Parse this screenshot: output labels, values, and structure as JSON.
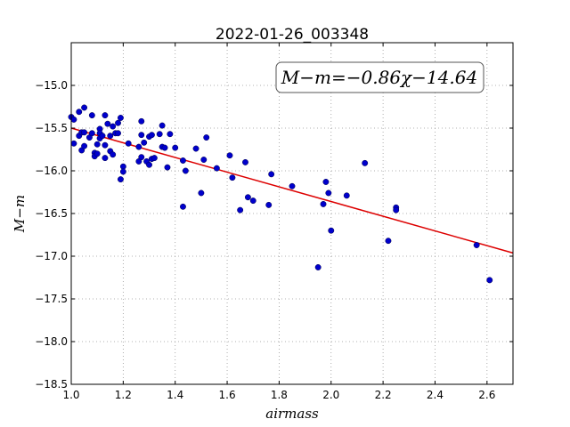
{
  "chart_data": {
    "type": "scatter",
    "title": "2022-01-26_003348",
    "xlabel": "airmass",
    "ylabel": "M−m",
    "annotation": "M−m=−0.86χ−14.64",
    "xlim": [
      1.0,
      2.7
    ],
    "ylim": [
      -18.5,
      -14.5
    ],
    "y_inverted": true,
    "grid": true,
    "x_ticks": [
      1.0,
      1.2,
      1.4,
      1.6,
      1.8,
      2.0,
      2.2,
      2.4,
      2.6
    ],
    "x_tick_labels": [
      "1.0",
      "1.2",
      "1.4",
      "1.6",
      "1.8",
      "2.0",
      "2.2",
      "2.4",
      "2.6"
    ],
    "y_ticks": [
      -15.0,
      -15.5,
      -16.0,
      -16.5,
      -17.0,
      -17.5,
      -18.0,
      -18.5
    ],
    "y_tick_labels": [
      "−15.0",
      "−15.5",
      "−16.0",
      "−16.5",
      "−17.0",
      "−17.5",
      "−18.0",
      "−18.5"
    ],
    "fit": {
      "slope": -0.86,
      "intercept": -14.64,
      "color": "#dd0000"
    },
    "points_color": "#0000cc",
    "points": [
      [
        1.0,
        -15.37
      ],
      [
        1.01,
        -15.68
      ],
      [
        1.01,
        -15.4
      ],
      [
        1.03,
        -15.31
      ],
      [
        1.03,
        -15.59
      ],
      [
        1.04,
        -15.55
      ],
      [
        1.04,
        -15.76
      ],
      [
        1.05,
        -15.26
      ],
      [
        1.05,
        -15.55
      ],
      [
        1.05,
        -15.71
      ],
      [
        1.07,
        -15.61
      ],
      [
        1.08,
        -15.35
      ],
      [
        1.08,
        -15.56
      ],
      [
        1.09,
        -15.79
      ],
      [
        1.09,
        -15.83
      ],
      [
        1.1,
        -15.8
      ],
      [
        1.1,
        -15.69
      ],
      [
        1.11,
        -15.51
      ],
      [
        1.11,
        -15.56
      ],
      [
        1.11,
        -15.62
      ],
      [
        1.12,
        -15.59
      ],
      [
        1.13,
        -15.7
      ],
      [
        1.13,
        -15.85
      ],
      [
        1.13,
        -15.35
      ],
      [
        1.14,
        -15.45
      ],
      [
        1.15,
        -15.59
      ],
      [
        1.15,
        -15.77
      ],
      [
        1.16,
        -15.81
      ],
      [
        1.16,
        -15.48
      ],
      [
        1.17,
        -15.56
      ],
      [
        1.18,
        -15.44
      ],
      [
        1.18,
        -15.56
      ],
      [
        1.19,
        -15.38
      ],
      [
        1.19,
        -16.1
      ],
      [
        1.2,
        -15.95
      ],
      [
        1.2,
        -16.01
      ],
      [
        1.22,
        -15.68
      ],
      [
        1.26,
        -15.72
      ],
      [
        1.26,
        -15.89
      ],
      [
        1.27,
        -15.42
      ],
      [
        1.27,
        -15.58
      ],
      [
        1.27,
        -15.84
      ],
      [
        1.28,
        -15.67
      ],
      [
        1.29,
        -15.89
      ],
      [
        1.3,
        -15.6
      ],
      [
        1.3,
        -15.93
      ],
      [
        1.31,
        -15.86
      ],
      [
        1.31,
        -15.58
      ],
      [
        1.32,
        -15.85
      ],
      [
        1.34,
        -15.57
      ],
      [
        1.35,
        -15.47
      ],
      [
        1.35,
        -15.72
      ],
      [
        1.36,
        -15.73
      ],
      [
        1.37,
        -15.96
      ],
      [
        1.38,
        -15.57
      ],
      [
        1.4,
        -15.73
      ],
      [
        1.43,
        -15.88
      ],
      [
        1.43,
        -16.42
      ],
      [
        1.44,
        -16.0
      ],
      [
        1.48,
        -15.74
      ],
      [
        1.5,
        -16.26
      ],
      [
        1.51,
        -15.87
      ],
      [
        1.52,
        -15.61
      ],
      [
        1.56,
        -15.97
      ],
      [
        1.61,
        -15.82
      ],
      [
        1.62,
        -16.08
      ],
      [
        1.65,
        -16.46
      ],
      [
        1.67,
        -15.9
      ],
      [
        1.68,
        -16.31
      ],
      [
        1.7,
        -16.35
      ],
      [
        1.76,
        -16.4
      ],
      [
        1.77,
        -16.04
      ],
      [
        1.85,
        -16.18
      ],
      [
        1.95,
        -17.13
      ],
      [
        1.97,
        -16.39
      ],
      [
        1.98,
        -16.13
      ],
      [
        1.99,
        -16.26
      ],
      [
        2.0,
        -16.7
      ],
      [
        2.06,
        -16.29
      ],
      [
        2.13,
        -15.91
      ],
      [
        2.22,
        -16.82
      ],
      [
        2.25,
        -16.43
      ],
      [
        2.25,
        -16.46
      ],
      [
        2.56,
        -16.87
      ],
      [
        2.61,
        -17.28
      ]
    ]
  }
}
